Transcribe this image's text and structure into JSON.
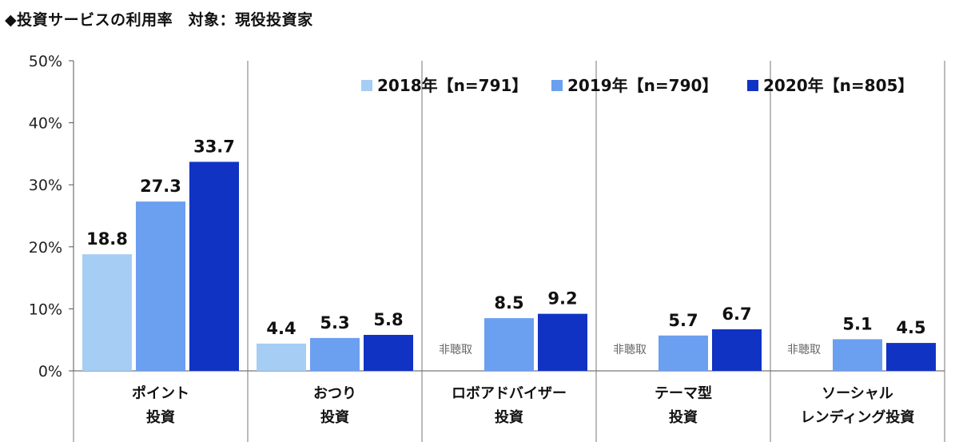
{
  "title": "◆投資サービスの利用率　対象：現役投資家",
  "chart_data": {
    "type": "bar",
    "title": "◆投資サービスの利用率　対象：現役投資家",
    "categories": [
      [
        "ポイント",
        "投資"
      ],
      [
        "おつり",
        "投資"
      ],
      [
        "ロボアドバイザー",
        "投資"
      ],
      [
        "テーマ型",
        "投資"
      ],
      [
        "ソーシャル",
        "レンディング投資"
      ]
    ],
    "series": [
      {
        "name": "2018年【n=791】",
        "color": "#a6cdf4",
        "values": [
          18.8,
          4.4,
          null,
          null,
          null
        ]
      },
      {
        "name": "2019年【n=790】",
        "color": "#6b9ff0",
        "values": [
          27.3,
          5.3,
          8.5,
          5.7,
          5.1
        ]
      },
      {
        "name": "2020年【n=805】",
        "color": "#1033c4",
        "values": [
          33.7,
          5.8,
          9.2,
          6.7,
          4.5
        ]
      }
    ],
    "ylim": [
      0,
      50
    ],
    "yticks": [
      "0%",
      "10%",
      "20%",
      "30%",
      "40%",
      "50%"
    ],
    "missing_label": "非聴取",
    "legend_position": "top-right",
    "grid": false
  }
}
